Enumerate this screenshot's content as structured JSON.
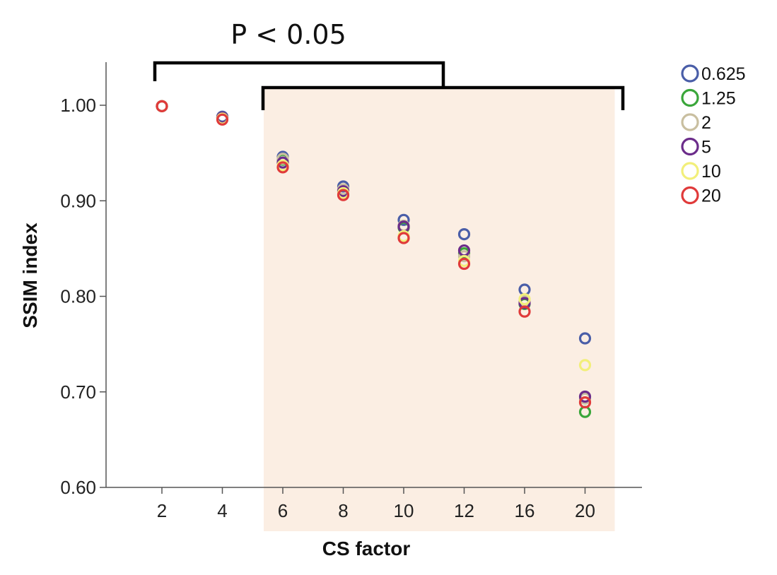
{
  "chart_data": {
    "type": "scatter",
    "xlabel": "CS factor",
    "ylabel": "SSIM index",
    "categories": [
      "2",
      "4",
      "6",
      "8",
      "10",
      "12",
      "16",
      "20"
    ],
    "ylim": [
      0.6,
      1.04
    ],
    "yticks": [
      "0.60",
      "0.70",
      "0.80",
      "0.90",
      "1.00"
    ],
    "grid": false,
    "legend_position": "top-right",
    "annotation": "P < 0.05",
    "highlight_categories": [
      "6",
      "8",
      "10",
      "12",
      "16",
      "20"
    ],
    "highlight_color": "#fbeee3",
    "series": [
      {
        "name": "0.625",
        "color": "#4a5ea8",
        "values": [
          0.999,
          0.988,
          0.946,
          0.915,
          0.88,
          0.865,
          0.807,
          0.756
        ]
      },
      {
        "name": "1.25",
        "color": "#3aa63a",
        "values": [
          0.999,
          0.987,
          0.943,
          0.911,
          0.872,
          0.845,
          0.792,
          0.679
        ]
      },
      {
        "name": "2",
        "color": "#c9bfa0",
        "values": [
          0.999,
          0.987,
          0.944,
          0.912,
          0.874,
          0.842,
          0.795,
          0.693
        ]
      },
      {
        "name": "5",
        "color": "#6b2c8a",
        "values": [
          0.999,
          0.987,
          0.94,
          0.91,
          0.873,
          0.848,
          0.793,
          0.695
        ]
      },
      {
        "name": "10",
        "color": "#f2ef7a",
        "values": [
          0.999,
          0.986,
          0.937,
          0.908,
          0.863,
          0.837,
          0.797,
          0.728
        ]
      },
      {
        "name": "20",
        "color": "#e03a3a",
        "values": [
          0.999,
          0.985,
          0.935,
          0.906,
          0.861,
          0.834,
          0.784,
          0.689
        ]
      }
    ]
  }
}
